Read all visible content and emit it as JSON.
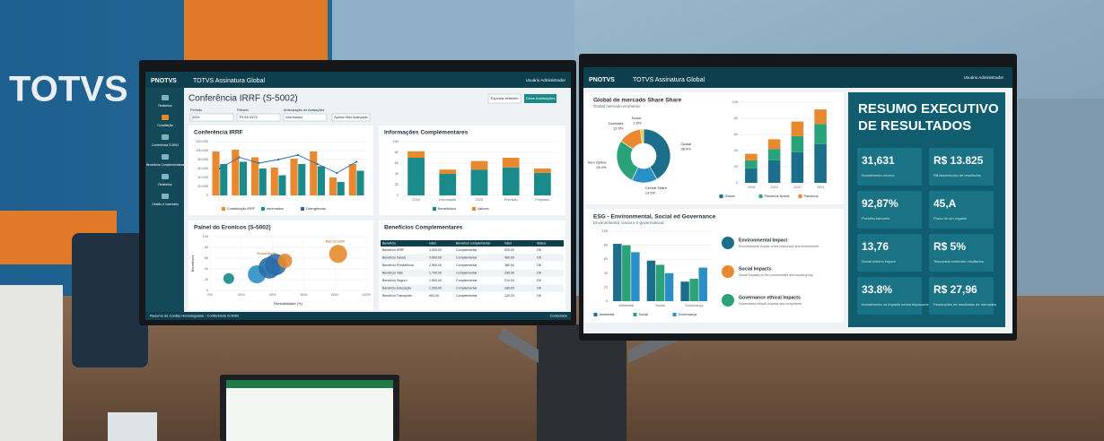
{
  "scene": {
    "wall_sign": "TOTVS"
  },
  "left_monitor": {
    "brand": "PNOTVS",
    "app_title": "TOTVS Assinatura Global",
    "user": "Usuário Administrador",
    "page_title": "Conferência IRRF (S-5002)",
    "buttons": [
      "Exportar relatório",
      "Gerar Analisações"
    ],
    "filters": [
      {
        "label": "Período",
        "value": "2024"
      },
      {
        "label": "Filtrado",
        "value": "TR 04.00/72"
      },
      {
        "label": "Antecipação de Avaliações",
        "value": "Informados"
      }
    ],
    "filter_button": "Aplicar filtro Avançado",
    "nav": [
      "Relatórios",
      "Conciliação",
      "Conferência S-5002",
      "Benefícios Complementares",
      "Relatórios",
      "Gestão e Inventário"
    ],
    "table": {
      "title": "Benefícios Complementares",
      "header": [
        "Benefício",
        "Valor",
        "Beneficio complementar",
        "Valor",
        "Status"
      ],
      "rows": [
        [
          "Benefício IRRF",
          "4.500,00",
          "Complementar",
          "520,00",
          "OK"
        ],
        [
          "Benefício Saúde",
          "3.600,00",
          "Complementar",
          "460,00",
          "OK"
        ],
        [
          "Benefício Previdência",
          "2.900,00",
          "Complementar",
          "380,00",
          "OK"
        ],
        [
          "Benefício Vale",
          "1.700,00",
          "Complementar",
          "290,00",
          "OK"
        ],
        [
          "Benefício Seguro",
          "1.500,00",
          "Complementar",
          "210,00",
          "OK"
        ],
        [
          "Benefício Educação",
          "1.200,00",
          "Complementar",
          "180,00",
          "OK"
        ],
        [
          "Benefício Transporte",
          "900,00",
          "Complementar",
          "120,00",
          "OK"
        ]
      ]
    },
    "footer": "Resumo de Contas Homologados - Conferência S-5002",
    "status": "Conectado"
  },
  "right_monitor": {
    "brand": "PNOTVS",
    "app_title": "TOTVS Assinatura Global",
    "user": "Usuário Administrador",
    "esg_items": [
      {
        "title": "Environmental Impact",
        "text": "Environmental impact of the resources and environment"
      },
      {
        "title": "Social Impacts",
        "text": "Social impacts on the communities and social group"
      },
      {
        "title": "Governance ethical Impacts",
        "text": "Governance ethical impacts and compliance"
      }
    ],
    "executive_summary": {
      "title_lines": [
        "RESUMO EXECUTIVO",
        "DE RESULTADOS"
      ],
      "kpis": [
        {
          "value": "31,631",
          "label": "Investimento retorno"
        },
        {
          "value": "R$ 13.825",
          "label": "R$ desembolso de resultados"
        },
        {
          "value": "92,87%",
          "label": "Proveito bancário"
        },
        {
          "value": "45,A",
          "label": "Prazo de um regame"
        },
        {
          "value": "13,76",
          "label": "Social retorno impact"
        },
        {
          "value": "R$ 5%",
          "label": "Tesouraria conteúdo resultados"
        },
        {
          "value": "33.8%",
          "label": "Investimento na impacts sense deposumes"
        },
        {
          "value": "R$ 27,96",
          "label": "Resoluções de resultados de mercados"
        }
      ]
    }
  },
  "chart_data": [
    {
      "type": "bar",
      "title": "Conferência IRRF",
      "categories": [
        null,
        null,
        null,
        null,
        null,
        null,
        null,
        null
      ],
      "ylim": [
        0,
        120000
      ],
      "yticks": [
        0,
        {
          "value": 20000,
          "label": "20.000"
        },
        {
          "value": 40000,
          "label": "40.000"
        },
        {
          "value": 60000,
          "label": "60.000"
        },
        {
          "value": 80000,
          "label": "80.000"
        },
        {
          "value": 100000,
          "label": "100.000"
        },
        {
          "value": 120000,
          "label": "120.000"
        }
      ],
      "series": [
        {
          "name": "Contribuição IRRF",
          "color": "#e8892f",
          "values": [
            98000,
            102000,
            85000,
            62000,
            82000,
            98000,
            40000,
            70000
          ]
        },
        {
          "name": "Informados",
          "color": "#1a8a8a",
          "values": [
            70000,
            75000,
            60000,
            45000,
            70000,
            65000,
            30000,
            55000
          ]
        },
        {
          "name": "Divergências",
          "color": "#2b6ca8",
          "mark": "line",
          "values": [
            60000,
            85000,
            72000,
            80000,
            90000,
            70000,
            50000,
            75000
          ]
        }
      ],
      "grid": true
    },
    {
      "type": "bar",
      "stacked": true,
      "title": "Informações Complementares",
      "categories": [
        "2016",
        "Informação",
        "2020",
        "Previsão",
        "Projetado"
      ],
      "ylim": [
        0,
        100
      ],
      "yticks": [
        0,
        20,
        40,
        60,
        80,
        100
      ],
      "series": [
        {
          "name": "Beneficiário",
          "color": "#1a8a8a",
          "values": [
            70,
            40,
            48,
            52,
            42
          ]
        },
        {
          "name": "Valores",
          "color": "#e8892f",
          "values": [
            12,
            8,
            16,
            18,
            8
          ]
        }
      ],
      "grid": true
    },
    {
      "type": "scatter",
      "title": "Painel do Eronicos (S-5002)",
      "x": [
        12,
        30,
        38,
        42,
        48,
        82
      ],
      "values": [
        22,
        30,
        42,
        48,
        55,
        68
      ],
      "sizes": [
        6,
        10,
        12,
        12,
        8,
        10
      ],
      "colors": [
        "#1a8a8a",
        "#2b8fc7",
        "#2b6ca8",
        "#2b6ca8",
        "#e8892f",
        "#e8892f"
      ],
      "annotations": [
        "Acumulação",
        "Mai somobli"
      ],
      "xlim": [
        0,
        100
      ],
      "xticks": [
        {
          "value": 0,
          "label": "0%"
        },
        {
          "value": 20,
          "label": "20%"
        },
        {
          "value": 40,
          "label": "40%"
        },
        {
          "value": 60,
          "label": "60%"
        },
        {
          "value": 80,
          "label": "80%"
        },
        {
          "value": 100,
          "label": "100%"
        }
      ],
      "ylim": [
        0,
        100
      ],
      "yticks": [
        0,
        20,
        40,
        60,
        80,
        100
      ],
      "xlabel": "Rentabilidade (%)",
      "ylabel": "Benefícios",
      "grid": true
    },
    {
      "type": "pie",
      "title": "Global de mercado Share Share",
      "subtitle": "Global mercado economic",
      "categories": [
        "Global",
        "Cevhal Share",
        "Sem Opões",
        "Doramed",
        "Social"
      ],
      "values": [
        38.9,
        14.5,
        25.4,
        12.9,
        1.8
      ],
      "value_labels": [
        "38.9%",
        "14.5%",
        "25.4%",
        "12.9%",
        "1.8%"
      ],
      "colors": [
        "#1b6f8a",
        "#2b8fc7",
        "#2aa37a",
        "#e8892f",
        "#f2c14e"
      ]
    },
    {
      "type": "bar",
      "stacked": true,
      "categories": [
        "2018",
        "2019",
        "2020",
        "2021"
      ],
      "ylim": [
        0,
        100
      ],
      "yticks": [
        0,
        20,
        40,
        60,
        80,
        100
      ],
      "series": [
        {
          "name": "Global",
          "color": "#1b6f8a",
          "values": [
            18,
            28,
            38,
            48
          ]
        },
        {
          "name": "Parceiros Novos",
          "color": "#2aa37a",
          "values": [
            10,
            14,
            20,
            25
          ]
        },
        {
          "name": "Parceiros",
          "color": "#e8892f",
          "values": [
            8,
            12,
            18,
            18
          ]
        }
      ],
      "grid": true
    },
    {
      "type": "bar",
      "title": "ESG - Environmental, Social ed Governance",
      "subtitle": "Environmental, social e d governanecal",
      "categories": [
        "Ambiental",
        "Social",
        "Governança"
      ],
      "ylim": [
        0,
        100
      ],
      "yticks": [
        0,
        20,
        40,
        60,
        80,
        100
      ],
      "series": [
        {
          "name": "Ambiental",
          "color": "#1b6f8a",
          "values": [
            82,
            58,
            28
          ]
        },
        {
          "name": "Social",
          "color": "#2aa37a",
          "values": [
            80,
            52,
            32
          ]
        },
        {
          "name": "Governança",
          "color": "#2b8fc7",
          "values": [
            70,
            40,
            48
          ]
        }
      ],
      "grid": true
    }
  ]
}
